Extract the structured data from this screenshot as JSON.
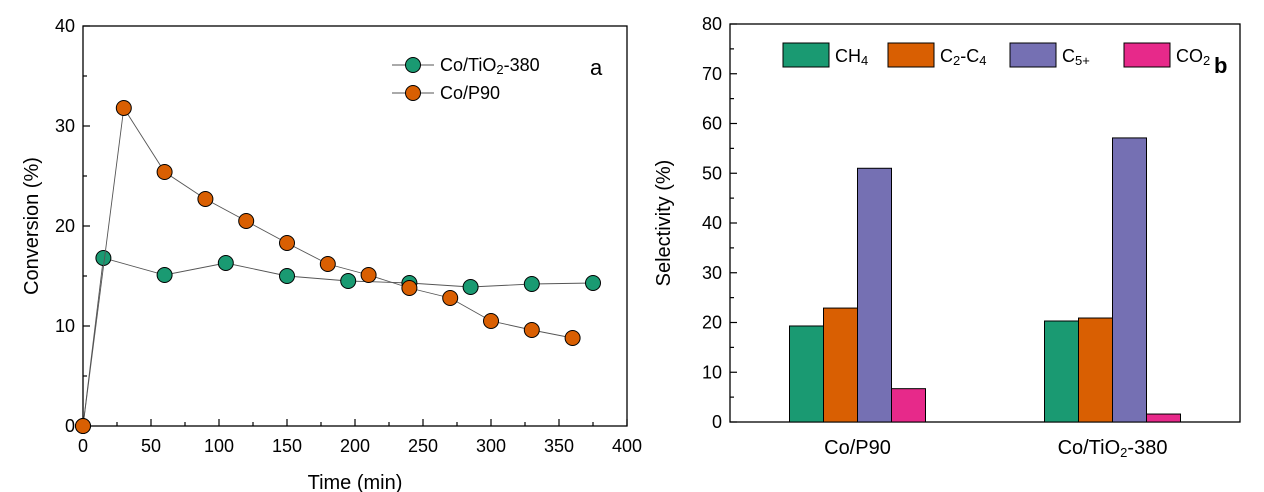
{
  "chart_data": [
    {
      "type": "line",
      "panel_label": "a",
      "xlabel": "Time (min)",
      "ylabel": "Conversion (%)",
      "xlim": [
        0,
        400
      ],
      "ylim": [
        0,
        40
      ],
      "xticks": [
        0,
        50,
        100,
        150,
        200,
        250,
        300,
        350,
        400
      ],
      "yticks": [
        0,
        10,
        20,
        30,
        40
      ],
      "legend_position": "top-right",
      "grid": false,
      "series": [
        {
          "name": "Co/TiO2-380",
          "legend_parts": [
            "Co/TiO",
            "2",
            "-380"
          ],
          "color": "#1a9a72",
          "x": [
            0,
            15,
            60,
            105,
            150,
            195,
            240,
            285,
            330,
            375
          ],
          "y": [
            0,
            16.8,
            15.1,
            16.3,
            15.0,
            14.5,
            14.3,
            13.9,
            14.2,
            14.3
          ]
        },
        {
          "name": "Co/P90",
          "legend_parts": [
            "Co/P90"
          ],
          "color": "#d95f02",
          "x": [
            0,
            30,
            60,
            90,
            120,
            150,
            180,
            210,
            240,
            270,
            300,
            330,
            360
          ],
          "y": [
            0,
            31.8,
            25.4,
            22.7,
            20.5,
            18.3,
            16.2,
            15.1,
            13.8,
            12.8,
            10.5,
            9.6,
            8.8
          ]
        }
      ]
    },
    {
      "type": "bar",
      "panel_label": "b",
      "xlabel": "",
      "ylabel": "Selectivity (%)",
      "ylim": [
        0,
        80
      ],
      "yticks": [
        0,
        10,
        20,
        30,
        40,
        50,
        60,
        70,
        80
      ],
      "legend_position": "top",
      "grid": false,
      "categories": [
        "Co/P90",
        "Co/TiO2-380"
      ],
      "category_label_parts": [
        [
          "Co/P90"
        ],
        [
          "Co/TiO",
          "2",
          "-380"
        ]
      ],
      "series": [
        {
          "name": "CH4",
          "label_parts": [
            [
              "CH",
              ""
            ],
            [
              "4",
              "sub"
            ]
          ],
          "color": "#1a9a72",
          "values": [
            19.3,
            20.3
          ]
        },
        {
          "name": "C2-C4",
          "label_parts": [
            [
              "C",
              ""
            ],
            [
              "2",
              "sub"
            ],
            [
              "-C",
              ""
            ],
            [
              "4",
              "sub"
            ]
          ],
          "color": "#d95f02",
          "values": [
            22.9,
            20.9
          ]
        },
        {
          "name": "C5+",
          "label_parts": [
            [
              "C",
              ""
            ],
            [
              "5+",
              "sub"
            ]
          ],
          "color": "#7570b3",
          "values": [
            51.0,
            57.1
          ]
        },
        {
          "name": "CO2",
          "label_parts": [
            [
              "CO",
              ""
            ],
            [
              "2",
              "sub"
            ]
          ],
          "color": "#e7298a",
          "values": [
            6.7,
            1.6
          ]
        }
      ]
    }
  ]
}
